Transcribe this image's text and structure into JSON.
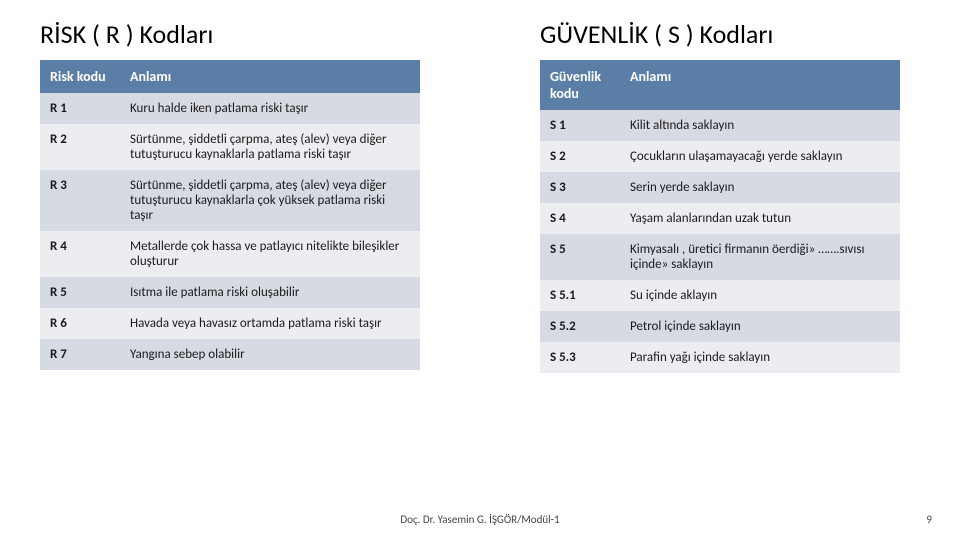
{
  "colors": {
    "header_bg": "#5b7ea7",
    "header_text": "#ffffff",
    "row_alt_dark": "#d6dae2",
    "row_alt_light": "#ecedf0",
    "body_text": "#1a1a1a",
    "background": "#ffffff"
  },
  "typography": {
    "title_fontsize": 26,
    "header_fontsize": 14,
    "cell_fontsize": 13,
    "footer_fontsize": 11
  },
  "left": {
    "title": "RİSK ( R ) Kodları",
    "col_widths": [
      "80px",
      "auto"
    ],
    "headers": [
      "Risk kodu",
      "Anlamı"
    ],
    "rows": [
      [
        "R 1",
        "Kuru halde iken patlama riski taşır"
      ],
      [
        "R 2",
        "Sürtünme, şiddetli çarpma, ateş (alev) veya diğer tutuşturucu kaynaklarla patlama riski taşır"
      ],
      [
        "R 3",
        "Sürtünme, şiddetli çarpma, ateş (alev) veya diğer tutuşturucu kaynaklarla çok yüksek patlama riski taşır"
      ],
      [
        "R 4",
        "Metallerde  çok hassa ve patlayıcı nitelikte  bileşikler oluşturur"
      ],
      [
        "R 5",
        "Isıtma ile patlama riski oluşabilir"
      ],
      [
        "R 6",
        "Havada veya havasız ortamda patlama riski taşır"
      ],
      [
        "R 7",
        "Yangına sebep olabilir"
      ]
    ]
  },
  "right": {
    "title": "GÜVENLİK ( S ) Kodları",
    "col_widths": [
      "80px",
      "auto"
    ],
    "headers": [
      "Güvenlik kodu",
      "Anlamı"
    ],
    "rows": [
      [
        "S 1",
        "Kilit altında saklayın"
      ],
      [
        "S 2",
        "Çocukların ulaşamayacağı yerde saklayın"
      ],
      [
        "S 3",
        "Serin yerde saklayın"
      ],
      [
        "S 4",
        "Yaşam alanlarından uzak tutun"
      ],
      [
        "S 5",
        "Kimyasalı , üretici firmanın öerdiği» …….sıvısı içinde» saklayın"
      ],
      [
        "S 5.1",
        "Su içinde aklayın"
      ],
      [
        "S 5.2",
        "Petrol içinde saklayın"
      ],
      [
        "S 5.3",
        "Parafin yağı içinde saklayın"
      ]
    ]
  },
  "footer": {
    "center": "Doç. Dr. Yasemin G. İŞGÖR/Modül-1",
    "page": "9"
  }
}
